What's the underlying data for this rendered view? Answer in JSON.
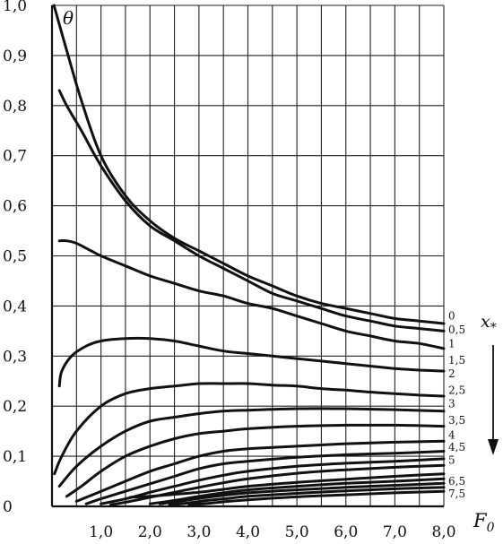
{
  "chart_data": {
    "type": "line",
    "xlabel": "F",
    "xlabel_sub": "0",
    "ylabel": "θ",
    "legend_title": "x",
    "legend_title_sub": "*",
    "xlim": [
      0.0,
      8.0
    ],
    "ylim": [
      0.0,
      1.0
    ],
    "xticks": [
      {
        "value": 1.0,
        "label": "1,0"
      },
      {
        "value": 2.0,
        "label": "2,0"
      },
      {
        "value": 3.0,
        "label": "3,0"
      },
      {
        "value": 4.0,
        "label": "4,0"
      },
      {
        "value": 5.0,
        "label": "5,0"
      },
      {
        "value": 6.0,
        "label": "6,0"
      },
      {
        "value": 7.0,
        "label": "7,0"
      },
      {
        "value": 8.0,
        "label": "8,0"
      }
    ],
    "yticks": [
      {
        "value": 0.0,
        "label": "0"
      },
      {
        "value": 0.1,
        "label": "0,1"
      },
      {
        "value": 0.2,
        "label": "0,2"
      },
      {
        "value": 0.3,
        "label": "0,3"
      },
      {
        "value": 0.4,
        "label": "0,4"
      },
      {
        "value": 0.5,
        "label": "0,5"
      },
      {
        "value": 0.6,
        "label": "0,6"
      },
      {
        "value": 0.7,
        "label": "0,7"
      },
      {
        "value": 0.8,
        "label": "0,8"
      },
      {
        "value": 0.9,
        "label": "0,9"
      },
      {
        "value": 1.0,
        "label": "1,0"
      }
    ],
    "grid_x": [
      0.5,
      1.0,
      1.5,
      2.0,
      2.5,
      3.0,
      3.5,
      4.0,
      4.5,
      5.0,
      5.5,
      6.0,
      6.5,
      7.0,
      7.5,
      8.0
    ],
    "grid_y": [
      0.1,
      0.2,
      0.3,
      0.4,
      0.5,
      0.6,
      0.7,
      0.8,
      0.9,
      1.0
    ],
    "grid": true,
    "colors": {
      "line": "#111111",
      "grid": "#222222",
      "background": "#ffffff"
    },
    "series": [
      {
        "name": "0",
        "label_y": 0.38,
        "points": [
          [
            0.04,
            1.0
          ],
          [
            0.3,
            0.91
          ],
          [
            0.6,
            0.81
          ],
          [
            1.0,
            0.7
          ],
          [
            1.5,
            0.62
          ],
          [
            2.0,
            0.57
          ],
          [
            2.5,
            0.535
          ],
          [
            3.0,
            0.51
          ],
          [
            3.5,
            0.485
          ],
          [
            4.0,
            0.46
          ],
          [
            4.5,
            0.44
          ],
          [
            5.0,
            0.42
          ],
          [
            5.5,
            0.405
          ],
          [
            6.0,
            0.395
          ],
          [
            6.5,
            0.385
          ],
          [
            7.0,
            0.375
          ],
          [
            7.5,
            0.37
          ],
          [
            8.0,
            0.365
          ]
        ]
      },
      {
        "name": "0,5",
        "label_y": 0.352,
        "points": [
          [
            0.15,
            0.83
          ],
          [
            0.3,
            0.8
          ],
          [
            0.6,
            0.75
          ],
          [
            1.0,
            0.68
          ],
          [
            1.5,
            0.61
          ],
          [
            2.0,
            0.56
          ],
          [
            2.5,
            0.53
          ],
          [
            3.0,
            0.5
          ],
          [
            3.5,
            0.475
          ],
          [
            4.0,
            0.45
          ],
          [
            4.5,
            0.425
          ],
          [
            5.0,
            0.41
          ],
          [
            5.5,
            0.395
          ],
          [
            6.0,
            0.38
          ],
          [
            6.5,
            0.37
          ],
          [
            7.0,
            0.36
          ],
          [
            7.5,
            0.355
          ],
          [
            8.0,
            0.35
          ]
        ]
      },
      {
        "name": "1",
        "label_y": 0.325,
        "points": [
          [
            0.15,
            0.53
          ],
          [
            0.3,
            0.53
          ],
          [
            0.5,
            0.525
          ],
          [
            0.8,
            0.51
          ],
          [
            1.0,
            0.5
          ],
          [
            1.5,
            0.48
          ],
          [
            2.0,
            0.46
          ],
          [
            2.5,
            0.445
          ],
          [
            3.0,
            0.43
          ],
          [
            3.5,
            0.42
          ],
          [
            4.0,
            0.405
          ],
          [
            4.5,
            0.395
          ],
          [
            5.0,
            0.38
          ],
          [
            5.5,
            0.365
          ],
          [
            6.0,
            0.35
          ],
          [
            6.5,
            0.34
          ],
          [
            7.0,
            0.33
          ],
          [
            7.5,
            0.325
          ],
          [
            8.0,
            0.315
          ]
        ]
      },
      {
        "name": "1,5",
        "label_y": 0.292,
        "points": [
          [
            0.15,
            0.24
          ],
          [
            0.2,
            0.27
          ],
          [
            0.4,
            0.3
          ],
          [
            0.7,
            0.32
          ],
          [
            1.0,
            0.33
          ],
          [
            1.5,
            0.335
          ],
          [
            2.0,
            0.335
          ],
          [
            2.5,
            0.33
          ],
          [
            3.0,
            0.32
          ],
          [
            3.5,
            0.31
          ],
          [
            4.0,
            0.305
          ],
          [
            4.5,
            0.3
          ],
          [
            5.0,
            0.295
          ],
          [
            5.5,
            0.29
          ],
          [
            6.0,
            0.285
          ],
          [
            6.5,
            0.28
          ],
          [
            7.0,
            0.275
          ],
          [
            7.5,
            0.272
          ],
          [
            8.0,
            0.27
          ]
        ]
      },
      {
        "name": "2",
        "label_y": 0.265,
        "points": [
          [
            0.05,
            0.065
          ],
          [
            0.2,
            0.1
          ],
          [
            0.5,
            0.15
          ],
          [
            1.0,
            0.2
          ],
          [
            1.5,
            0.225
          ],
          [
            2.0,
            0.235
          ],
          [
            2.5,
            0.24
          ],
          [
            3.0,
            0.245
          ],
          [
            3.5,
            0.245
          ],
          [
            4.0,
            0.245
          ],
          [
            4.5,
            0.242
          ],
          [
            5.0,
            0.24
          ],
          [
            5.5,
            0.235
          ],
          [
            6.0,
            0.232
          ],
          [
            6.5,
            0.228
          ],
          [
            7.0,
            0.225
          ],
          [
            7.5,
            0.222
          ],
          [
            8.0,
            0.22
          ]
        ]
      },
      {
        "name": "2,5",
        "label_y": 0.232,
        "points": [
          [
            0.15,
            0.04
          ],
          [
            0.5,
            0.08
          ],
          [
            1.0,
            0.12
          ],
          [
            1.5,
            0.15
          ],
          [
            2.0,
            0.17
          ],
          [
            2.5,
            0.178
          ],
          [
            3.0,
            0.185
          ],
          [
            3.5,
            0.19
          ],
          [
            4.0,
            0.192
          ],
          [
            5.0,
            0.195
          ],
          [
            6.0,
            0.195
          ],
          [
            7.0,
            0.193
          ],
          [
            8.0,
            0.19
          ]
        ]
      },
      {
        "name": "3",
        "label_y": 0.205,
        "points": [
          [
            0.3,
            0.02
          ],
          [
            0.6,
            0.04
          ],
          [
            1.0,
            0.07
          ],
          [
            1.5,
            0.1
          ],
          [
            2.0,
            0.12
          ],
          [
            2.5,
            0.135
          ],
          [
            3.0,
            0.145
          ],
          [
            3.5,
            0.15
          ],
          [
            4.0,
            0.155
          ],
          [
            5.0,
            0.16
          ],
          [
            6.0,
            0.162
          ],
          [
            7.0,
            0.162
          ],
          [
            8.0,
            0.16
          ]
        ]
      },
      {
        "name": "3,5",
        "label_y": 0.172,
        "points": [
          [
            0.5,
            0.01
          ],
          [
            1.0,
            0.03
          ],
          [
            1.5,
            0.05
          ],
          [
            2.0,
            0.07
          ],
          [
            2.5,
            0.085
          ],
          [
            3.0,
            0.1
          ],
          [
            3.5,
            0.11
          ],
          [
            4.0,
            0.115
          ],
          [
            5.0,
            0.12
          ],
          [
            6.0,
            0.125
          ],
          [
            7.0,
            0.128
          ],
          [
            8.0,
            0.13
          ]
        ]
      },
      {
        "name": "4",
        "label_y": 0.142,
        "points": [
          [
            0.7,
            0.005
          ],
          [
            1.0,
            0.015
          ],
          [
            1.5,
            0.03
          ],
          [
            2.0,
            0.045
          ],
          [
            2.5,
            0.06
          ],
          [
            3.0,
            0.075
          ],
          [
            3.5,
            0.085
          ],
          [
            4.0,
            0.09
          ],
          [
            5.0,
            0.098
          ],
          [
            6.0,
            0.103
          ],
          [
            7.0,
            0.106
          ],
          [
            8.0,
            0.11
          ]
        ]
      },
      {
        "name": "4,5",
        "label_y": 0.118,
        "points": [
          [
            1.0,
            0.005
          ],
          [
            1.5,
            0.015
          ],
          [
            2.0,
            0.028
          ],
          [
            2.5,
            0.04
          ],
          [
            3.0,
            0.052
          ],
          [
            3.5,
            0.062
          ],
          [
            4.0,
            0.07
          ],
          [
            5.0,
            0.08
          ],
          [
            6.0,
            0.086
          ],
          [
            7.0,
            0.09
          ],
          [
            8.0,
            0.095
          ]
        ]
      },
      {
        "name": "5",
        "label_y": 0.092,
        "points": [
          [
            1.2,
            0.003
          ],
          [
            1.6,
            0.01
          ],
          [
            2.0,
            0.018
          ],
          [
            2.5,
            0.028
          ],
          [
            3.0,
            0.038
          ],
          [
            3.5,
            0.047
          ],
          [
            4.0,
            0.055
          ],
          [
            5.0,
            0.066
          ],
          [
            6.0,
            0.073
          ],
          [
            7.0,
            0.078
          ],
          [
            8.0,
            0.082
          ]
        ]
      },
      {
        "name": "6,5",
        "label_y": 0.05,
        "points": [
          [
            1.6,
            0.018
          ],
          [
            2.0,
            0.02
          ],
          [
            2.5,
            0.024
          ],
          [
            3.0,
            0.028
          ],
          [
            3.5,
            0.034
          ],
          [
            4.0,
            0.04
          ],
          [
            5.0,
            0.048
          ],
          [
            6.0,
            0.054
          ],
          [
            7.0,
            0.06
          ],
          [
            8.0,
            0.065
          ]
        ]
      },
      {
        "name": "",
        "label_y": null,
        "points": [
          [
            2.0,
            0.005
          ],
          [
            2.5,
            0.012
          ],
          [
            3.0,
            0.02
          ],
          [
            3.5,
            0.027
          ],
          [
            4.0,
            0.033
          ],
          [
            5.0,
            0.04
          ],
          [
            6.0,
            0.046
          ],
          [
            7.0,
            0.05
          ],
          [
            8.0,
            0.055
          ]
        ]
      },
      {
        "name": "",
        "label_y": null,
        "points": [
          [
            2.2,
            0.005
          ],
          [
            2.6,
            0.01
          ],
          [
            3.0,
            0.016
          ],
          [
            3.5,
            0.022
          ],
          [
            4.0,
            0.027
          ],
          [
            5.0,
            0.033
          ],
          [
            6.0,
            0.038
          ],
          [
            7.0,
            0.042
          ],
          [
            8.0,
            0.046
          ]
        ]
      },
      {
        "name": "7,5",
        "label_y": 0.025,
        "points": [
          [
            2.4,
            0.003
          ],
          [
            2.8,
            0.007
          ],
          [
            3.2,
            0.012
          ],
          [
            3.6,
            0.016
          ],
          [
            4.0,
            0.02
          ],
          [
            5.0,
            0.026
          ],
          [
            6.0,
            0.031
          ],
          [
            7.0,
            0.035
          ],
          [
            8.0,
            0.038
          ]
        ]
      },
      {
        "name": "",
        "label_y": null,
        "points": [
          [
            2.8,
            0.003
          ],
          [
            3.2,
            0.006
          ],
          [
            3.6,
            0.01
          ],
          [
            4.0,
            0.013
          ],
          [
            5.0,
            0.019
          ],
          [
            6.0,
            0.023
          ],
          [
            7.0,
            0.027
          ],
          [
            8.0,
            0.03
          ]
        ]
      }
    ]
  }
}
